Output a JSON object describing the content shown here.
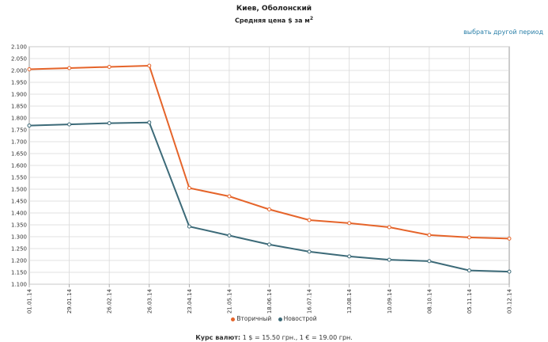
{
  "header": {
    "title": "Киев, Оболонский",
    "subtitle": "Средняя цена $ за м",
    "subtitle_sup": "2",
    "period_link": "выбрать другой период"
  },
  "chart_data": {
    "type": "line",
    "title": "Киев, Оболонский",
    "subtitle": "Средняя цена $ за м2",
    "categories": [
      "01.01.14",
      "29.01.14",
      "26.02.14",
      "26.03.14",
      "23.04.14",
      "21.05.14",
      "18.06.14",
      "16.07.14",
      "13.08.14",
      "10.09.14",
      "08.10.14",
      "05.11.14",
      "03.12.14"
    ],
    "series": [
      {
        "name": "Вторичный",
        "color": "#e5642a",
        "values": [
          2005,
          2010,
          2015,
          2020,
          1505,
          1470,
          1415,
          1370,
          1357,
          1340,
          1307,
          1297,
          1292
        ]
      },
      {
        "name": "Новострой",
        "color": "#3c6a78",
        "values": [
          1768,
          1773,
          1778,
          1781,
          1343,
          1305,
          1267,
          1237,
          1217,
          1203,
          1197,
          1158,
          1153
        ]
      }
    ],
    "yticks": [
      "2.100",
      "2.050",
      "2.000",
      "1.950",
      "1.900",
      "1.850",
      "1.800",
      "1.750",
      "1.700",
      "1.650",
      "1.600",
      "1.550",
      "1.500",
      "1.450",
      "1.400",
      "1.350",
      "1.300",
      "1.250",
      "1.200",
      "1.150",
      "1.100"
    ],
    "ylim": [
      1100,
      2100
    ],
    "grid": true,
    "legend_position": "bottom"
  },
  "legend": {
    "secondary": "Вторичный",
    "new": "Новострой"
  },
  "footer": {
    "rates_label": "Курс валют:",
    "rates_text": "1 $ = 15.50 грн., 1 € = 19.00 грн."
  },
  "colors": {
    "secondary": "#e5642a",
    "new": "#3c6a78",
    "link": "#2a7fa8"
  }
}
